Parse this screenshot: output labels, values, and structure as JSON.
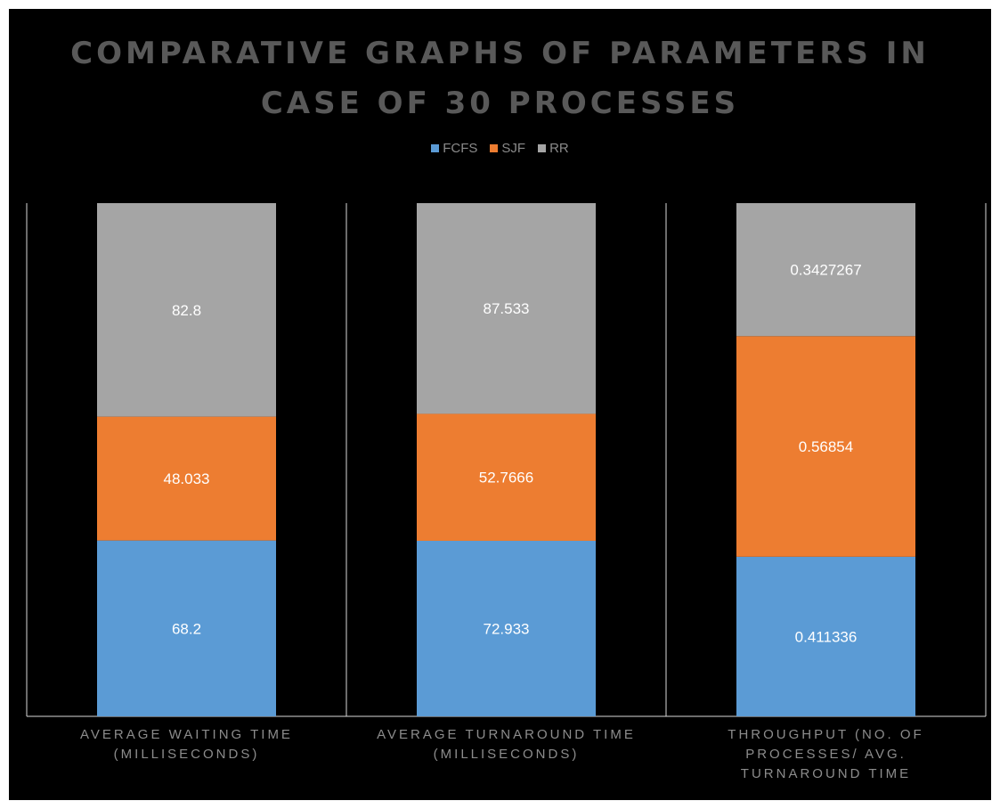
{
  "title": "COMPARATIVE GRAPHS OF PARAMETERS IN CASE OF 30 PROCESSES",
  "title_lines": [
    "COMPARATIVE GRAPHS OF PARAMETERS IN",
    "CASE OF 30 PROCESSES"
  ],
  "legend": [
    {
      "label": "FCFS",
      "color": "#5b9bd5"
    },
    {
      "label": "SJF",
      "color": "#ed7d31"
    },
    {
      "label": "RR",
      "color": "#a5a5a5"
    }
  ],
  "chart_data": {
    "type": "bar",
    "stacking": "percent",
    "title": "COMPARATIVE GRAPHS OF PARAMETERS IN CASE OF 30 PROCESSES",
    "categories": [
      "AVERAGE WAITING TIME (MILLISECONDS)",
      "AVERAGE TURNAROUND TIME (MILLISECONDS)",
      "THROUGHPUT (NO. OF PROCESSES/ AVG. TURNAROUND TIME"
    ],
    "category_lines": [
      [
        "AVERAGE WAITING TIME",
        "(MILLISECONDS)"
      ],
      [
        "AVERAGE TURNAROUND TIME",
        "(MILLISECONDS)"
      ],
      [
        "THROUGHPUT (NO. OF",
        "PROCESSES/ AVG.",
        "TURNAROUND TIME"
      ]
    ],
    "series": [
      {
        "name": "FCFS",
        "color": "#5b9bd5",
        "values": [
          68.2,
          72.933,
          0.411336
        ],
        "labels": [
          "68.2",
          "72.933",
          "0.411336"
        ]
      },
      {
        "name": "SJF",
        "color": "#ed7d31",
        "values": [
          48.033,
          52.7666,
          0.56854
        ],
        "labels": [
          "48.033",
          "52.7666",
          "0.56854"
        ]
      },
      {
        "name": "RR",
        "color": "#a5a5a5",
        "values": [
          82.8,
          87.533,
          0.3427267
        ],
        "labels": [
          "82.8",
          "87.533",
          "0.3427267"
        ]
      }
    ],
    "legend_position": "top",
    "grid": false
  }
}
